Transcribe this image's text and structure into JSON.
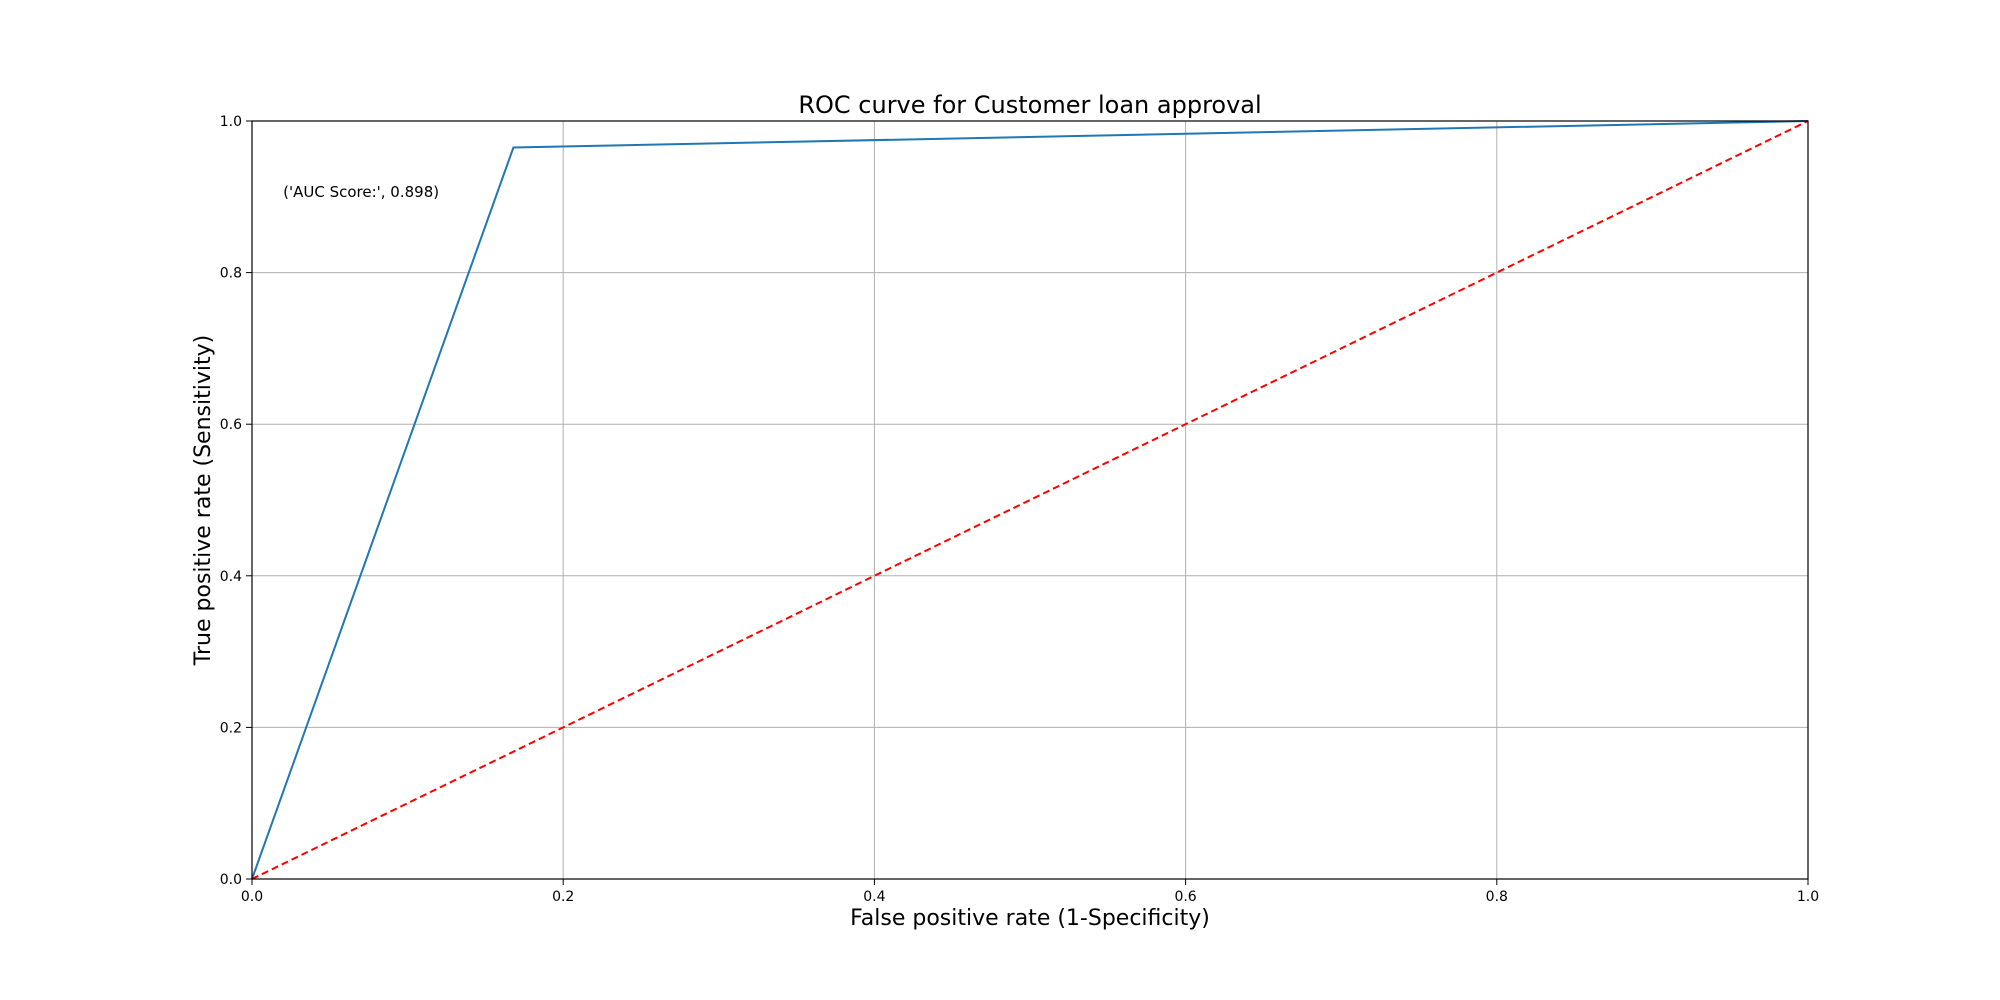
{
  "chart_data": {
    "type": "line",
    "title": "ROC curve for Customer loan approval",
    "xlabel": "False positive rate (1-Specificity)",
    "ylabel": "True positive rate (Sensitivity)",
    "xlim": [
      0.0,
      1.0
    ],
    "ylim": [
      0.0,
      1.0
    ],
    "xticks": [
      0.0,
      0.2,
      0.4,
      0.6,
      0.8,
      1.0
    ],
    "yticks": [
      0.0,
      0.2,
      0.4,
      0.6,
      0.8,
      1.0
    ],
    "xtick_labels": [
      "0.0",
      "0.2",
      "0.4",
      "0.6",
      "0.8",
      "1.0"
    ],
    "ytick_labels": [
      "0.0",
      "0.2",
      "0.4",
      "0.6",
      "0.8",
      "1.0"
    ],
    "grid": true,
    "series": [
      {
        "x": [
          0.0,
          0.168,
          1.0
        ],
        "y": [
          0.0,
          0.965,
          1.0
        ],
        "color": "#1f77b4",
        "style": "solid"
      },
      {
        "x": [
          0.0,
          1.0
        ],
        "y": [
          0.0,
          1.0
        ],
        "color": "#ff0000",
        "style": "dashed"
      }
    ],
    "annotations": [
      {
        "text": "('AUC Score:', 0.898)",
        "x": 0.02,
        "y": 0.9
      }
    ]
  }
}
